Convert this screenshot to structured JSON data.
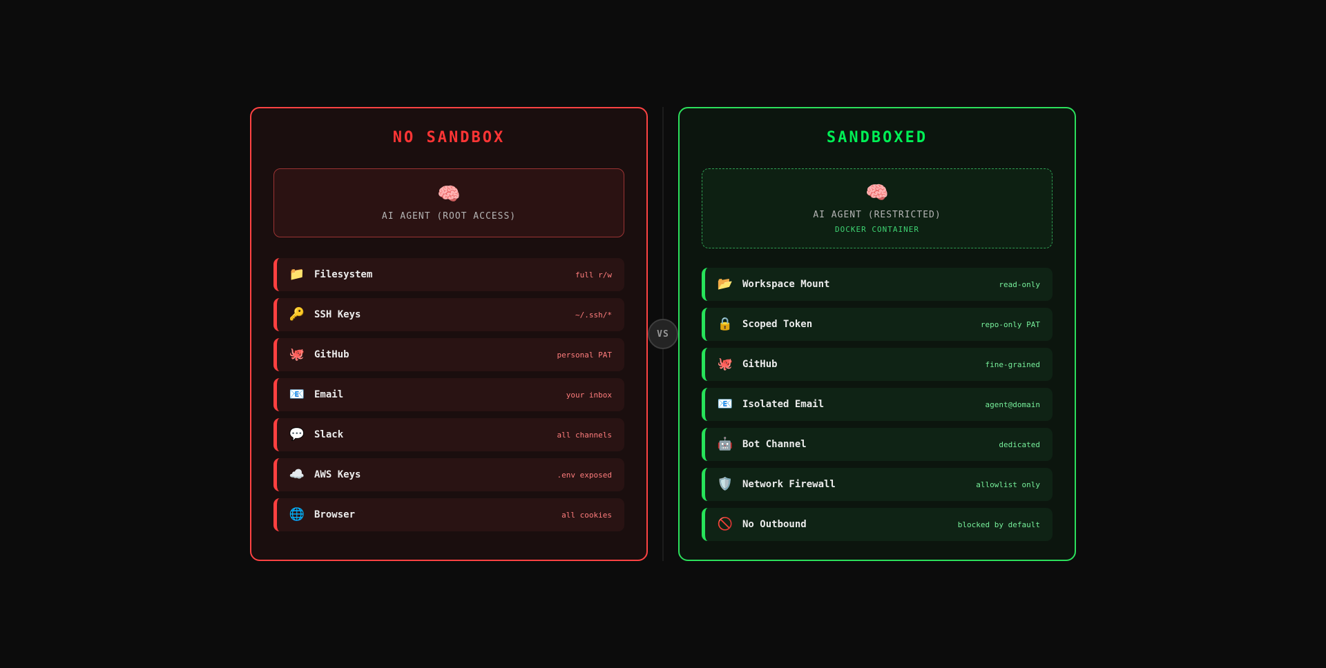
{
  "vs_badge": {
    "label": "VS"
  },
  "colors": {
    "page_bg": "#0c0c0c",
    "red_accent": "#ff4343",
    "red_value": "#ff7d7d",
    "green_accent": "#2ce05c",
    "green_value": "#77f09b"
  },
  "panels": [
    {
      "id": "no_sandbox",
      "title": "NO SANDBOX",
      "agent": {
        "icon": "🧠",
        "label": "AI AGENT (ROOT ACCESS)"
      },
      "rows": [
        {
          "icon": "📁",
          "label": "Filesystem",
          "value": "full r/w"
        },
        {
          "icon": "🔑",
          "label": "SSH Keys",
          "value": "~/.ssh/*"
        },
        {
          "icon": "🐙",
          "label": "GitHub",
          "value": "personal PAT"
        },
        {
          "icon": "📧",
          "label": "Email",
          "value": "your inbox"
        },
        {
          "icon": "💬",
          "label": "Slack",
          "value": "all channels"
        },
        {
          "icon": "☁️",
          "label": "AWS Keys",
          "value": ".env exposed"
        },
        {
          "icon": "🌐",
          "label": "Browser",
          "value": "all cookies"
        }
      ]
    },
    {
      "id": "sandboxed",
      "title": "SANDBOXED",
      "agent": {
        "icon": "🧠",
        "label": "AI AGENT (RESTRICTED)",
        "sublabel": "DOCKER CONTAINER"
      },
      "rows": [
        {
          "icon": "📂",
          "label": "Workspace Mount",
          "value": "read-only"
        },
        {
          "icon": "🔒",
          "label": "Scoped Token",
          "value": "repo-only PAT"
        },
        {
          "icon": "🐙",
          "label": "GitHub",
          "value": "fine-grained"
        },
        {
          "icon": "📧",
          "label": "Isolated Email",
          "value": "agent@domain"
        },
        {
          "icon": "🤖",
          "label": "Bot Channel",
          "value": "dedicated"
        },
        {
          "icon": "🛡️",
          "label": "Network Firewall",
          "value": "allowlist only"
        },
        {
          "icon": "🚫",
          "label": "No Outbound",
          "value": "blocked by default"
        }
      ]
    }
  ]
}
